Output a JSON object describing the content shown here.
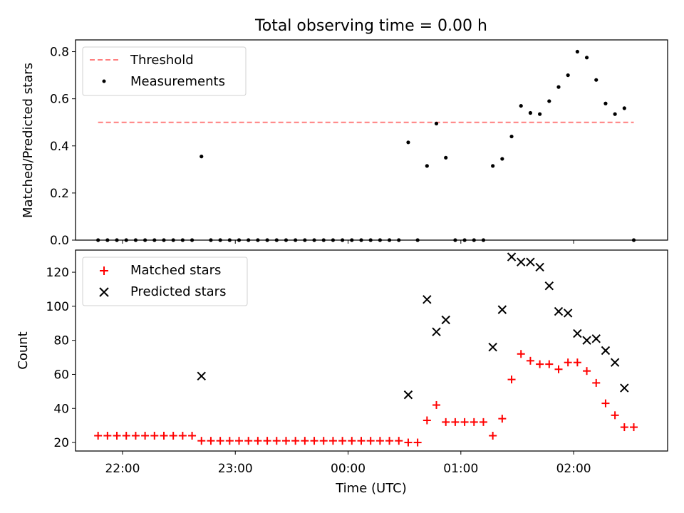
{
  "title": "Total observing time = 0.00 h",
  "colors": {
    "threshold": "#ff7f7f",
    "measurements": "#000000",
    "matched": "#ff0000",
    "predicted": "#000000"
  },
  "chart_data": [
    {
      "type": "scatter",
      "ylabel": "Matched/Predicted stars",
      "ylim": [
        0,
        0.85
      ],
      "yticks": [
        0.0,
        0.2,
        0.4,
        0.6,
        0.8
      ],
      "ytick_labels": [
        "0.0",
        "0.2",
        "0.4",
        "0.6",
        "0.8"
      ],
      "legend_position": "upper left",
      "threshold": {
        "name": "Threshold",
        "value": 0.5,
        "x_range": [
          "21:47",
          "02:32"
        ]
      },
      "series": [
        {
          "name": "Measurements",
          "points": [
            [
              "21:47",
              0.0
            ],
            [
              "21:52",
              0.0
            ],
            [
              "21:57",
              0.0
            ],
            [
              "22:02",
              0.0
            ],
            [
              "22:07",
              0.0
            ],
            [
              "22:12",
              0.0
            ],
            [
              "22:17",
              0.0
            ],
            [
              "22:22",
              0.0
            ],
            [
              "22:27",
              0.0
            ],
            [
              "22:32",
              0.0
            ],
            [
              "22:37",
              0.0
            ],
            [
              "22:42",
              0.355
            ],
            [
              "22:47",
              0.0
            ],
            [
              "22:52",
              0.0
            ],
            [
              "22:57",
              0.0
            ],
            [
              "23:02",
              0.0
            ],
            [
              "23:07",
              0.0
            ],
            [
              "23:12",
              0.0
            ],
            [
              "23:17",
              0.0
            ],
            [
              "23:22",
              0.0
            ],
            [
              "23:27",
              0.0
            ],
            [
              "23:32",
              0.0
            ],
            [
              "23:37",
              0.0
            ],
            [
              "23:42",
              0.0
            ],
            [
              "23:47",
              0.0
            ],
            [
              "23:52",
              0.0
            ],
            [
              "23:57",
              0.0
            ],
            [
              "00:02",
              0.0
            ],
            [
              "00:07",
              0.0
            ],
            [
              "00:12",
              0.0
            ],
            [
              "00:17",
              0.0
            ],
            [
              "00:22",
              0.0
            ],
            [
              "00:27",
              0.0
            ],
            [
              "00:32",
              0.415
            ],
            [
              "00:37",
              0.0
            ],
            [
              "00:42",
              0.315
            ],
            [
              "00:47",
              0.495
            ],
            [
              "00:52",
              0.35
            ],
            [
              "00:57",
              0.0
            ],
            [
              "01:02",
              0.0
            ],
            [
              "01:07",
              0.0
            ],
            [
              "01:12",
              0.0
            ],
            [
              "01:17",
              0.315
            ],
            [
              "01:22",
              0.345
            ],
            [
              "01:27",
              0.44
            ],
            [
              "01:32",
              0.57
            ],
            [
              "01:37",
              0.54
            ],
            [
              "01:42",
              0.535
            ],
            [
              "01:47",
              0.59
            ],
            [
              "01:52",
              0.65
            ],
            [
              "01:57",
              0.7
            ],
            [
              "02:02",
              0.8
            ],
            [
              "02:07",
              0.775
            ],
            [
              "02:12",
              0.68
            ],
            [
              "02:17",
              0.58
            ],
            [
              "02:22",
              0.535
            ],
            [
              "02:27",
              0.56
            ],
            [
              "02:32",
              0.0
            ]
          ]
        }
      ]
    },
    {
      "type": "scatter",
      "xlabel": "Time (UTC)",
      "ylabel": "Count",
      "ylim": [
        15,
        133
      ],
      "yticks": [
        20,
        40,
        60,
        80,
        100,
        120
      ],
      "ytick_labels": [
        "20",
        "40",
        "60",
        "80",
        "100",
        "120"
      ],
      "x_ticks": [
        "22:00",
        "23:00",
        "00:00",
        "01:00",
        "02:00"
      ],
      "xlim": [
        "21:35",
        "02:50"
      ],
      "legend_position": "upper left",
      "series": [
        {
          "name": "Matched stars",
          "marker": "plus",
          "points": [
            [
              "21:47",
              24
            ],
            [
              "21:52",
              24
            ],
            [
              "21:57",
              24
            ],
            [
              "22:02",
              24
            ],
            [
              "22:07",
              24
            ],
            [
              "22:12",
              24
            ],
            [
              "22:17",
              24
            ],
            [
              "22:22",
              24
            ],
            [
              "22:27",
              24
            ],
            [
              "22:32",
              24
            ],
            [
              "22:37",
              24
            ],
            [
              "22:42",
              21
            ],
            [
              "22:47",
              21
            ],
            [
              "22:52",
              21
            ],
            [
              "22:57",
              21
            ],
            [
              "23:02",
              21
            ],
            [
              "23:07",
              21
            ],
            [
              "23:12",
              21
            ],
            [
              "23:17",
              21
            ],
            [
              "23:22",
              21
            ],
            [
              "23:27",
              21
            ],
            [
              "23:32",
              21
            ],
            [
              "23:37",
              21
            ],
            [
              "23:42",
              21
            ],
            [
              "23:47",
              21
            ],
            [
              "23:52",
              21
            ],
            [
              "23:57",
              21
            ],
            [
              "00:02",
              21
            ],
            [
              "00:07",
              21
            ],
            [
              "00:12",
              21
            ],
            [
              "00:17",
              21
            ],
            [
              "00:22",
              21
            ],
            [
              "00:27",
              21
            ],
            [
              "00:32",
              20
            ],
            [
              "00:37",
              20
            ],
            [
              "00:42",
              33
            ],
            [
              "00:47",
              42
            ],
            [
              "00:52",
              32
            ],
            [
              "00:57",
              32
            ],
            [
              "01:02",
              32
            ],
            [
              "01:07",
              32
            ],
            [
              "01:12",
              32
            ],
            [
              "01:17",
              24
            ],
            [
              "01:22",
              34
            ],
            [
              "01:27",
              57
            ],
            [
              "01:32",
              72
            ],
            [
              "01:37",
              68
            ],
            [
              "01:42",
              66
            ],
            [
              "01:47",
              66
            ],
            [
              "01:52",
              63
            ],
            [
              "01:57",
              67
            ],
            [
              "02:02",
              67
            ],
            [
              "02:07",
              62
            ],
            [
              "02:12",
              55
            ],
            [
              "02:17",
              43
            ],
            [
              "02:22",
              36
            ],
            [
              "02:27",
              29
            ],
            [
              "02:32",
              29
            ]
          ]
        },
        {
          "name": "Predicted stars",
          "marker": "x",
          "points": [
            [
              "22:42",
              59
            ],
            [
              "00:32",
              48
            ],
            [
              "00:42",
              104
            ],
            [
              "00:47",
              85
            ],
            [
              "00:52",
              92
            ],
            [
              "01:17",
              76
            ],
            [
              "01:22",
              98
            ],
            [
              "01:27",
              129
            ],
            [
              "01:32",
              126
            ],
            [
              "01:37",
              126
            ],
            [
              "01:42",
              123
            ],
            [
              "01:47",
              112
            ],
            [
              "01:52",
              97
            ],
            [
              "01:57",
              96
            ],
            [
              "02:02",
              84
            ],
            [
              "02:07",
              80
            ],
            [
              "02:12",
              81
            ],
            [
              "02:17",
              74
            ],
            [
              "02:22",
              67
            ],
            [
              "02:27",
              52
            ]
          ]
        }
      ]
    }
  ]
}
